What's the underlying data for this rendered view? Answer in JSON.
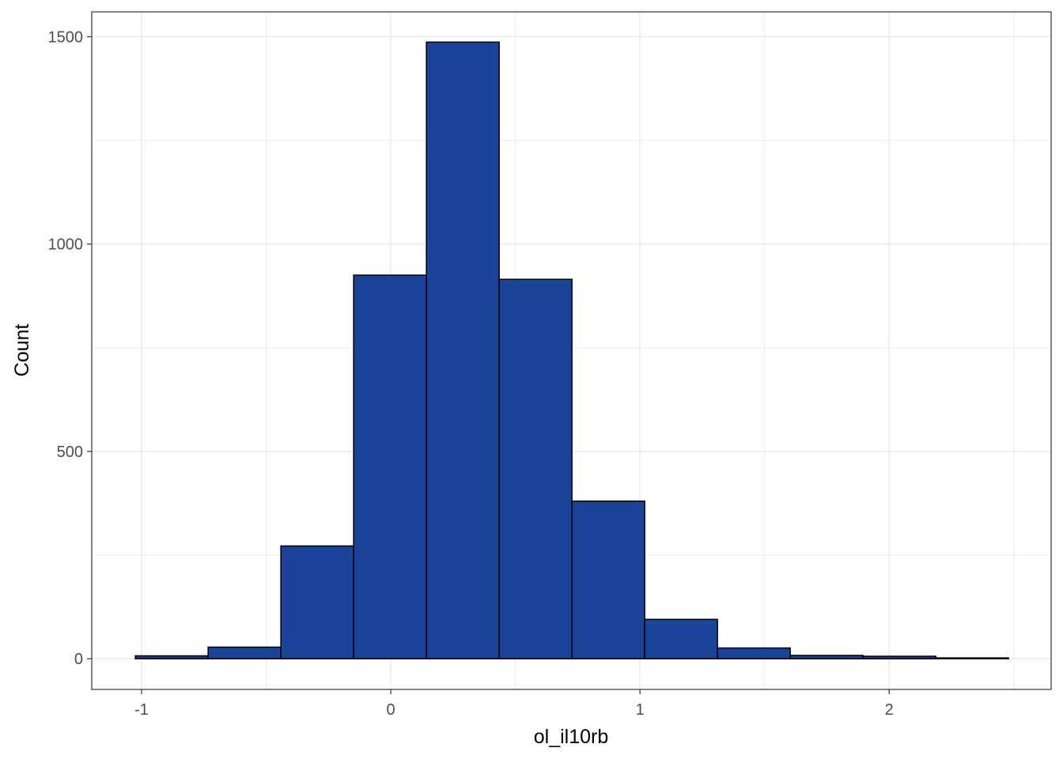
{
  "chart_data": {
    "type": "bar",
    "subtype": "histogram",
    "title": "",
    "xlabel": "ol_il10rb",
    "ylabel": "Count",
    "bins": [
      {
        "x0": -1.025,
        "x1": -0.733,
        "count": 7
      },
      {
        "x0": -0.733,
        "x1": -0.441,
        "count": 28
      },
      {
        "x0": -0.441,
        "x1": -0.149,
        "count": 272
      },
      {
        "x0": -0.149,
        "x1": 0.143,
        "count": 925
      },
      {
        "x0": 0.143,
        "x1": 0.435,
        "count": 1487
      },
      {
        "x0": 0.435,
        "x1": 0.727,
        "count": 915
      },
      {
        "x0": 0.727,
        "x1": 1.019,
        "count": 380
      },
      {
        "x0": 1.019,
        "x1": 1.311,
        "count": 95
      },
      {
        "x0": 1.311,
        "x1": 1.603,
        "count": 26
      },
      {
        "x0": 1.603,
        "x1": 1.895,
        "count": 8
      },
      {
        "x0": 1.895,
        "x1": 2.187,
        "count": 6
      },
      {
        "x0": 2.187,
        "x1": 2.479,
        "count": 2
      }
    ],
    "xlim": [
      -1.2,
      2.65
    ],
    "ylim": [
      -74,
      1560
    ],
    "x_ticks": [
      {
        "value": -1,
        "label": "-1"
      },
      {
        "value": 0,
        "label": "0"
      },
      {
        "value": 1,
        "label": "1"
      },
      {
        "value": 2,
        "label": "2"
      }
    ],
    "y_ticks": [
      {
        "value": 0,
        "label": "0"
      },
      {
        "value": 500,
        "label": "500"
      },
      {
        "value": 1000,
        "label": "1000"
      },
      {
        "value": 1500,
        "label": "1500"
      }
    ],
    "grid": true,
    "legend": "none",
    "colors": {
      "bar_fill": "#1a4499",
      "bar_stroke": "#000000",
      "grid": "#ebebeb",
      "panel_border": "#333333",
      "tick_text": "#4d4d4d"
    }
  }
}
